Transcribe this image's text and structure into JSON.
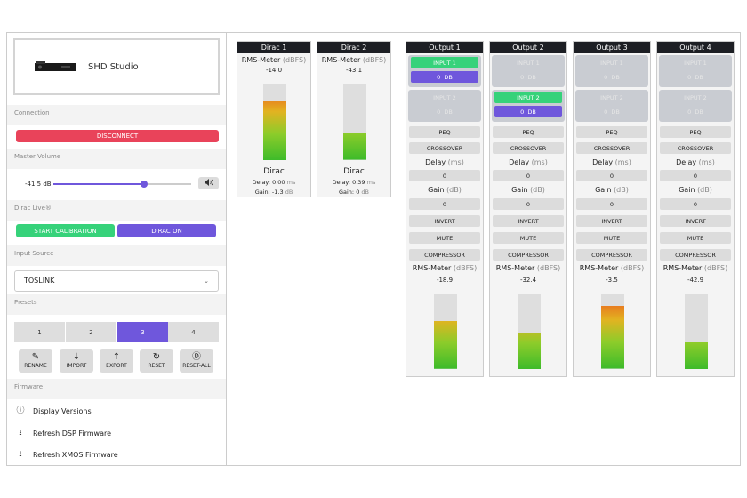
{
  "device": {
    "name": "SHD Studio"
  },
  "sections": {
    "connection": "Connection",
    "master_volume": "Master Volume",
    "dirac_live": "Dirac Live®",
    "input_source": "Input Source",
    "presets": "Presets",
    "firmware": "Firmware"
  },
  "connection": {
    "disconnect_label": "DISCONNECT"
  },
  "volume": {
    "value": "-41.5 dB",
    "level_fraction": 0.66,
    "mute_icon": "speaker-icon"
  },
  "dirac": {
    "calibration_label": "START CALIBRATION",
    "on_label": "DIRAC ON"
  },
  "input_source": {
    "selected": "TOSLINK"
  },
  "presets": {
    "items": [
      "1",
      "2",
      "3",
      "4"
    ],
    "selected": "3"
  },
  "tools": [
    {
      "label": "RENAME",
      "icon": "edit-icon"
    },
    {
      "label": "IMPORT",
      "icon": "arrow-down-icon"
    },
    {
      "label": "EXPORT",
      "icon": "arrow-up-icon"
    },
    {
      "label": "RESET",
      "icon": "refresh-icon"
    },
    {
      "label": "RESET-ALL",
      "icon": "reset-all-icon"
    }
  ],
  "firmware": [
    {
      "label": "Display Versions",
      "icon": "info-icon"
    },
    {
      "label": "Refresh DSP Firmware",
      "icon": "firmware-icon"
    },
    {
      "label": "Refresh XMOS Firmware",
      "icon": "firmware-icon"
    }
  ],
  "labels": {
    "rms_meter": "RMS-Meter",
    "dbfs": "(dBFS)",
    "dirac": "Dirac",
    "delay": "Delay:",
    "gain": "Gain:",
    "ms": "ms",
    "db": "dB",
    "DB": "DB",
    "input1": "INPUT 1",
    "input2": "INPUT 2",
    "peq": "PEQ",
    "crossover": "CROSSOVER",
    "delay_title": "Delay",
    "ms_paren": "(ms)",
    "gain_title": "Gain",
    "db_paren": "(dB)",
    "invert": "INVERT",
    "mute": "MUTE",
    "compressor": "COMPRESSOR"
  },
  "dirac_channels": [
    {
      "name": "Dirac 1",
      "rms": "-14.0",
      "level": 0.78,
      "delay": "0.00",
      "gain": "-1.3"
    },
    {
      "name": "Dirac 2",
      "rms": "-43.1",
      "level": 0.36,
      "delay": "0.39",
      "gain": "0"
    }
  ],
  "outputs": [
    {
      "name": "Output 1",
      "in1": {
        "value": "0",
        "active": true
      },
      "in2": {
        "value": "0",
        "active": false
      },
      "delay": "0",
      "gain": "0",
      "rms": "-18.9",
      "level": 0.64
    },
    {
      "name": "Output 2",
      "in1": {
        "value": "0",
        "active": false
      },
      "in2": {
        "value": "0",
        "active": true
      },
      "delay": "0",
      "gain": "0",
      "rms": "-32.4",
      "level": 0.48
    },
    {
      "name": "Output 3",
      "in1": {
        "value": "0",
        "active": false
      },
      "in2": {
        "value": "0",
        "active": false
      },
      "delay": "0",
      "gain": "0",
      "rms": "-3.5",
      "level": 0.84
    },
    {
      "name": "Output 4",
      "in1": {
        "value": "0",
        "active": false
      },
      "in2": {
        "value": "0",
        "active": false
      },
      "delay": "0",
      "gain": "0",
      "rms": "-42.9",
      "level": 0.36
    }
  ],
  "colors": {
    "red": "#e9435a",
    "green": "#36d27a",
    "purple": "#6f57dc",
    "header": "#1d1f24"
  }
}
